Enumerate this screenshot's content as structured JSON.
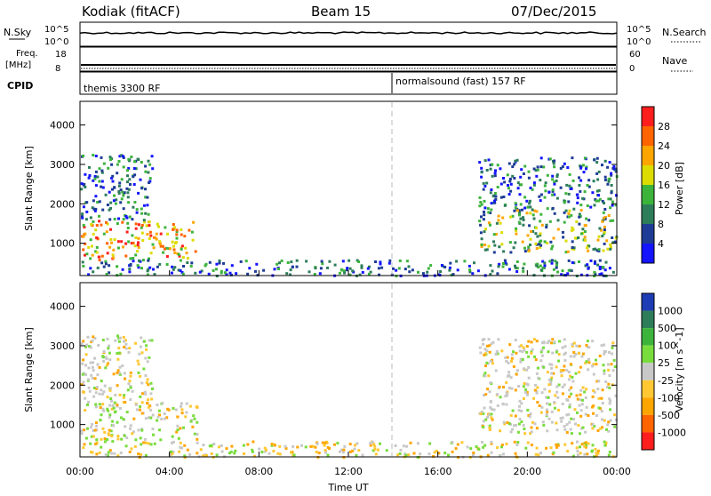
{
  "header": {
    "station": "Kodiak (fitACF)",
    "beam": "Beam 15",
    "date": "07/Dec/2015"
  },
  "top_panels": {
    "nsky_label": "N.Sky",
    "nsky_ticks": [
      "10^5",
      "10^0"
    ],
    "nsearch_label": "N.Search",
    "nsearch_ticks": [
      "10^5",
      "10^0"
    ],
    "freq_label": "Freq.",
    "freq_unit": "[MHz]",
    "freq_ticks": [
      "18",
      "8"
    ],
    "nave_label": "Nave",
    "nave_ticks": [
      "60",
      "0"
    ],
    "cpid_label": "CPID",
    "cpid_segments": [
      {
        "label": "themis 3300 RF",
        "start_hour": 0
      },
      {
        "label": "normalsound (fast) 157 RF",
        "start_hour": 14
      }
    ]
  },
  "axes": {
    "xlabel": "Time UT",
    "x_ticks": [
      "00:00",
      "04:00",
      "08:00",
      "12:00",
      "16:00",
      "20:00",
      "00:00"
    ],
    "ylabel": "Slant Range [km]",
    "y_ticks": [
      "1000",
      "2000",
      "3000",
      "4000"
    ]
  },
  "power_bar": {
    "label": "Power [dB]",
    "ticks": [
      "4",
      "8",
      "12",
      "16",
      "20",
      "24",
      "28"
    ],
    "colors": [
      "#1414ff",
      "#1e3c96",
      "#2d7d5a",
      "#3cb43c",
      "#dcdc00",
      "#ffa500",
      "#ff6400",
      "#ff1e1e"
    ]
  },
  "velocity_bar": {
    "label": "Velocity [m s^-1]",
    "ticks": [
      "1000",
      "500",
      "100",
      "25",
      "-25",
      "-100",
      "-500",
      "-1000"
    ],
    "colors": [
      "#1e3cb4",
      "#2d7d5a",
      "#3cb43c",
      "#78dc3c",
      "#c8c8c8",
      "#ffc832",
      "#ffa500",
      "#ff6400",
      "#ff1e1e"
    ]
  },
  "chart_data": {
    "type": "heatmap",
    "x_range_hours": [
      0,
      24
    ],
    "y_range_km": [
      180,
      4600
    ],
    "cpid_change_hour": 14,
    "power_regions": [
      {
        "t0": 0.0,
        "t1": 5.2,
        "r0": 600,
        "r1": 1600,
        "level": "high"
      },
      {
        "t0": 0.0,
        "t1": 3.2,
        "r0": 1600,
        "r1": 3300,
        "level": "low"
      },
      {
        "t0": 17.8,
        "t1": 24.0,
        "r0": 800,
        "r1": 1900,
        "level": "mid"
      },
      {
        "t0": 17.8,
        "t1": 24.0,
        "r0": 1900,
        "r1": 3200,
        "level": "low"
      },
      {
        "t0": 0.0,
        "t1": 24.0,
        "r0": 200,
        "r1": 600,
        "level": "low"
      }
    ],
    "velocity_regions": [
      {
        "t0": 0.0,
        "t1": 5.2,
        "r0": 600,
        "r1": 1600,
        "level": "mixed"
      },
      {
        "t0": 0.0,
        "t1": 3.2,
        "r0": 1600,
        "r1": 3300,
        "level": "gray"
      },
      {
        "t0": 17.8,
        "t1": 24.0,
        "r0": 800,
        "r1": 1900,
        "level": "gray"
      },
      {
        "t0": 17.8,
        "t1": 24.0,
        "r0": 1900,
        "r1": 3200,
        "level": "gray"
      },
      {
        "t0": 0.0,
        "t1": 24.0,
        "r0": 200,
        "r1": 600,
        "level": "slow"
      }
    ]
  }
}
